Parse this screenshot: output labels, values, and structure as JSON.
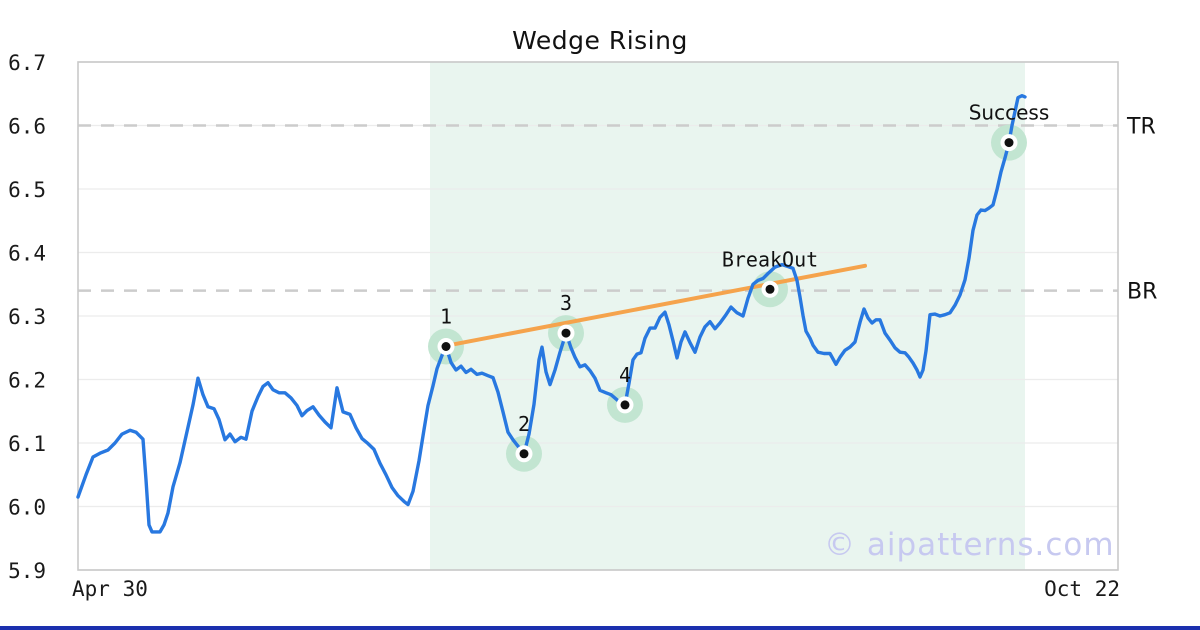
{
  "header": {
    "title": "Wedge Rising"
  },
  "watermark": {
    "text": "© aipatterns.com"
  },
  "chart_data": {
    "type": "line",
    "title": "Wedge Rising",
    "x_axis": {
      "ticks": [
        "Apr 30",
        "Oct 22"
      ]
    },
    "y_axis": {
      "min": 5.9,
      "max": 6.7,
      "ticks": [
        6.7,
        6.6,
        6.5,
        6.4,
        6.3,
        6.2,
        6.1,
        6.0,
        5.9
      ]
    },
    "grid": "horizontal",
    "legend": "none",
    "levels": [
      {
        "label": "TR",
        "value": 6.6
      },
      {
        "label": "BR",
        "value": 6.34
      }
    ],
    "pattern_region": {
      "start": 0.3385,
      "end": 0.9106
    },
    "trendline": {
      "start": [
        0.3538,
        6.253
      ],
      "end": [
        0.7567,
        6.379
      ]
    },
    "markers": [
      {
        "label": "1",
        "x": 0.3538,
        "value": 6.252,
        "font": "mono"
      },
      {
        "label": "2",
        "x": 0.4288,
        "value": 6.083,
        "font": "mono"
      },
      {
        "label": "3",
        "x": 0.4692,
        "value": 6.273,
        "font": "mono"
      },
      {
        "label": "4",
        "x": 0.526,
        "value": 6.16,
        "font": "mono"
      },
      {
        "label": "BreakOut",
        "x": 0.6654,
        "value": 6.342,
        "font": "mono"
      },
      {
        "label": "Success",
        "x": 0.8952,
        "value": 6.573,
        "font": "sans"
      }
    ],
    "series": [
      {
        "name": "price",
        "points": [
          [
            0.0,
            6.015
          ],
          [
            0.0077,
            6.05
          ],
          [
            0.0144,
            6.078
          ],
          [
            0.0212,
            6.084
          ],
          [
            0.0288,
            6.089
          ],
          [
            0.0356,
            6.1
          ],
          [
            0.0423,
            6.114
          ],
          [
            0.05,
            6.12
          ],
          [
            0.0558,
            6.117
          ],
          [
            0.0625,
            6.106
          ],
          [
            0.0654,
            6.042
          ],
          [
            0.0683,
            5.971
          ],
          [
            0.0712,
            5.96
          ],
          [
            0.0788,
            5.96
          ],
          [
            0.0827,
            5.971
          ],
          [
            0.0865,
            5.99
          ],
          [
            0.0913,
            6.031
          ],
          [
            0.0981,
            6.069
          ],
          [
            0.1048,
            6.118
          ],
          [
            0.1106,
            6.16
          ],
          [
            0.1154,
            6.202
          ],
          [
            0.1202,
            6.176
          ],
          [
            0.125,
            6.157
          ],
          [
            0.1308,
            6.154
          ],
          [
            0.1356,
            6.137
          ],
          [
            0.1413,
            6.105
          ],
          [
            0.1462,
            6.114
          ],
          [
            0.151,
            6.102
          ],
          [
            0.1567,
            6.109
          ],
          [
            0.1615,
            6.106
          ],
          [
            0.1673,
            6.15
          ],
          [
            0.1731,
            6.173
          ],
          [
            0.1779,
            6.189
          ],
          [
            0.1827,
            6.195
          ],
          [
            0.1875,
            6.184
          ],
          [
            0.1933,
            6.179
          ],
          [
            0.199,
            6.179
          ],
          [
            0.2048,
            6.171
          ],
          [
            0.2106,
            6.159
          ],
          [
            0.2154,
            6.143
          ],
          [
            0.2202,
            6.151
          ],
          [
            0.226,
            6.157
          ],
          [
            0.2317,
            6.144
          ],
          [
            0.2375,
            6.133
          ],
          [
            0.2433,
            6.124
          ],
          [
            0.249,
            6.187
          ],
          [
            0.2548,
            6.149
          ],
          [
            0.2615,
            6.145
          ],
          [
            0.2673,
            6.124
          ],
          [
            0.2731,
            6.107
          ],
          [
            0.2788,
            6.099
          ],
          [
            0.2846,
            6.09
          ],
          [
            0.2904,
            6.068
          ],
          [
            0.2962,
            6.05
          ],
          [
            0.3019,
            6.03
          ],
          [
            0.3077,
            6.017
          ],
          [
            0.3135,
            6.008
          ],
          [
            0.3173,
            6.003
          ],
          [
            0.3221,
            6.024
          ],
          [
            0.3279,
            6.072
          ],
          [
            0.3327,
            6.121
          ],
          [
            0.3365,
            6.159
          ],
          [
            0.3413,
            6.19
          ],
          [
            0.3452,
            6.217
          ],
          [
            0.35,
            6.238
          ],
          [
            0.3538,
            6.252
          ],
          [
            0.3587,
            6.227
          ],
          [
            0.3635,
            6.215
          ],
          [
            0.3683,
            6.221
          ],
          [
            0.3731,
            6.211
          ],
          [
            0.3779,
            6.216
          ],
          [
            0.3837,
            6.208
          ],
          [
            0.3885,
            6.21
          ],
          [
            0.3942,
            6.206
          ],
          [
            0.399,
            6.203
          ],
          [
            0.4038,
            6.18
          ],
          [
            0.4087,
            6.149
          ],
          [
            0.4135,
            6.117
          ],
          [
            0.4183,
            6.105
          ],
          [
            0.4231,
            6.095
          ],
          [
            0.4288,
            6.083
          ],
          [
            0.4337,
            6.114
          ],
          [
            0.4385,
            6.161
          ],
          [
            0.4433,
            6.231
          ],
          [
            0.4462,
            6.251
          ],
          [
            0.45,
            6.212
          ],
          [
            0.4538,
            6.192
          ],
          [
            0.4587,
            6.215
          ],
          [
            0.4635,
            6.243
          ],
          [
            0.4692,
            6.273
          ],
          [
            0.474,
            6.25
          ],
          [
            0.4779,
            6.235
          ],
          [
            0.4827,
            6.22
          ],
          [
            0.4875,
            6.223
          ],
          [
            0.4923,
            6.214
          ],
          [
            0.4971,
            6.202
          ],
          [
            0.5019,
            6.183
          ],
          [
            0.5077,
            6.179
          ],
          [
            0.5125,
            6.176
          ],
          [
            0.5183,
            6.168
          ],
          [
            0.5221,
            6.162
          ],
          [
            0.526,
            6.16
          ],
          [
            0.5298,
            6.194
          ],
          [
            0.5337,
            6.231
          ],
          [
            0.5375,
            6.24
          ],
          [
            0.5413,
            6.242
          ],
          [
            0.5452,
            6.265
          ],
          [
            0.55,
            6.281
          ],
          [
            0.5548,
            6.281
          ],
          [
            0.5596,
            6.298
          ],
          [
            0.5644,
            6.306
          ],
          [
            0.5683,
            6.286
          ],
          [
            0.5721,
            6.261
          ],
          [
            0.576,
            6.234
          ],
          [
            0.5798,
            6.259
          ],
          [
            0.5837,
            6.275
          ],
          [
            0.5885,
            6.258
          ],
          [
            0.5933,
            6.243
          ],
          [
            0.5981,
            6.267
          ],
          [
            0.6029,
            6.283
          ],
          [
            0.6077,
            6.291
          ],
          [
            0.6125,
            6.28
          ],
          [
            0.6173,
            6.289
          ],
          [
            0.6231,
            6.302
          ],
          [
            0.6279,
            6.314
          ],
          [
            0.6337,
            6.305
          ],
          [
            0.6394,
            6.3
          ],
          [
            0.6442,
            6.328
          ],
          [
            0.649,
            6.35
          ],
          [
            0.6538,
            6.356
          ],
          [
            0.6587,
            6.359
          ],
          [
            0.6635,
            6.367
          ],
          [
            0.6702,
            6.377
          ],
          [
            0.6769,
            6.381
          ],
          [
            0.6827,
            6.378
          ],
          [
            0.6875,
            6.375
          ],
          [
            0.6913,
            6.356
          ],
          [
            0.6942,
            6.33
          ],
          [
            0.6971,
            6.301
          ],
          [
            0.7,
            6.276
          ],
          [
            0.7038,
            6.265
          ],
          [
            0.7067,
            6.254
          ],
          [
            0.7115,
            6.243
          ],
          [
            0.7173,
            6.241
          ],
          [
            0.7231,
            6.241
          ],
          [
            0.7288,
            6.224
          ],
          [
            0.7327,
            6.235
          ],
          [
            0.7375,
            6.246
          ],
          [
            0.7423,
            6.251
          ],
          [
            0.7471,
            6.259
          ],
          [
            0.7519,
            6.29
          ],
          [
            0.7558,
            6.311
          ],
          [
            0.7596,
            6.297
          ],
          [
            0.7635,
            6.289
          ],
          [
            0.7673,
            6.294
          ],
          [
            0.7712,
            6.294
          ],
          [
            0.776,
            6.273
          ],
          [
            0.7808,
            6.262
          ],
          [
            0.7856,
            6.25
          ],
          [
            0.7904,
            6.243
          ],
          [
            0.7952,
            6.242
          ],
          [
            0.799,
            6.235
          ],
          [
            0.8029,
            6.226
          ],
          [
            0.8067,
            6.215
          ],
          [
            0.8096,
            6.204
          ],
          [
            0.8125,
            6.215
          ],
          [
            0.8154,
            6.245
          ],
          [
            0.8192,
            6.302
          ],
          [
            0.824,
            6.303
          ],
          [
            0.8288,
            6.3
          ],
          [
            0.8337,
            6.302
          ],
          [
            0.8385,
            6.305
          ],
          [
            0.8433,
            6.317
          ],
          [
            0.8481,
            6.333
          ],
          [
            0.8529,
            6.357
          ],
          [
            0.8567,
            6.391
          ],
          [
            0.8606,
            6.435
          ],
          [
            0.8644,
            6.459
          ],
          [
            0.8683,
            6.467
          ],
          [
            0.8721,
            6.466
          ],
          [
            0.876,
            6.47
          ],
          [
            0.8798,
            6.475
          ],
          [
            0.8837,
            6.499
          ],
          [
            0.8875,
            6.527
          ],
          [
            0.8913,
            6.549
          ],
          [
            0.8952,
            6.573
          ],
          [
            0.8981,
            6.6
          ],
          [
            0.901,
            6.622
          ],
          [
            0.9038,
            6.644
          ],
          [
            0.9077,
            6.647
          ],
          [
            0.9106,
            6.645
          ]
        ]
      }
    ],
    "colors": {
      "line": "#2878e0",
      "trendline": "#f5a34c",
      "region": "#e9f5ef",
      "marker_halo": "#c2e5d1",
      "dashed": "#cccccc",
      "grid": "#ececec",
      "frame": "#c9c9c9",
      "watermark": "#c7c9f0",
      "bottom_bar": "#1b2fae"
    }
  }
}
